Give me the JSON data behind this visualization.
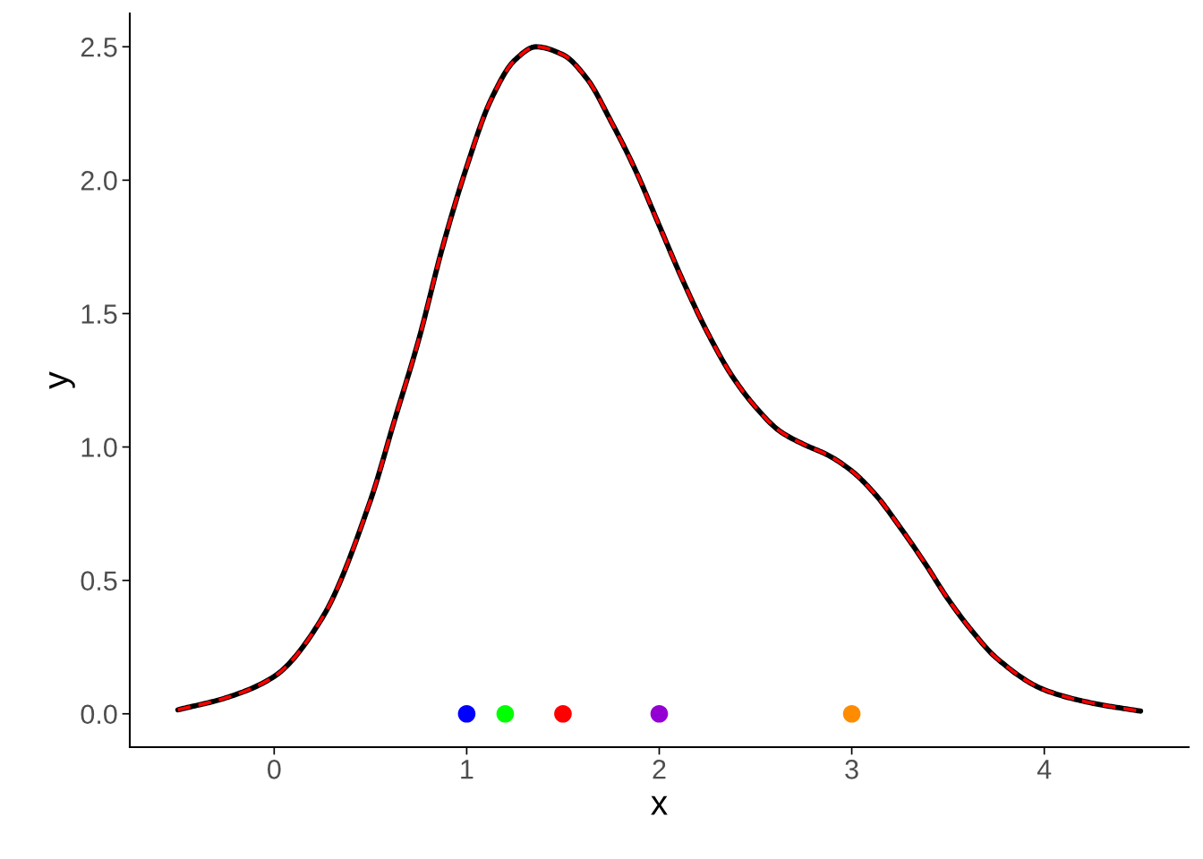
{
  "chart_data": {
    "type": "line",
    "xlabel": "x",
    "ylabel": "y",
    "xlim": [
      -0.75,
      4.75
    ],
    "ylim": [
      -0.125,
      2.625
    ],
    "xticks": [
      0,
      1,
      2,
      3,
      4
    ],
    "yticks": [
      {
        "value": 0,
        "label": "0.0"
      },
      {
        "value": 0.5,
        "label": "0.5"
      },
      {
        "value": 1,
        "label": "1.0"
      },
      {
        "value": 1.5,
        "label": "1.5"
      },
      {
        "value": 2,
        "label": "2.0"
      },
      {
        "value": 2.5,
        "label": "2.5"
      }
    ],
    "grid": false,
    "legend": false,
    "series": [
      {
        "color": "#000000",
        "line_style": "solid",
        "x": [
          -0.5,
          -0.25,
          0,
          0.25,
          0.5,
          0.625,
          0.75,
          0.875,
          1,
          1.125,
          1.25,
          1.36,
          1.5,
          1.625,
          1.75,
          1.875,
          2,
          2.125,
          2.25,
          2.375,
          2.5,
          2.625,
          2.75,
          2.875,
          3,
          3.125,
          3.25,
          3.375,
          3.5,
          3.625,
          3.75,
          4,
          4.25,
          4.5
        ],
        "values": [
          0.015,
          0.06,
          0.14,
          0.36,
          0.8,
          1.1,
          1.4,
          1.75,
          2.05,
          2.3,
          2.45,
          2.5,
          2.47,
          2.38,
          2.22,
          2.04,
          1.83,
          1.62,
          1.43,
          1.27,
          1.15,
          1.06,
          1.01,
          0.97,
          0.91,
          0.82,
          0.7,
          0.57,
          0.43,
          0.31,
          0.21,
          0.09,
          0.04,
          0.01
        ]
      },
      {
        "color": "#ff0000",
        "line_style": "dashed",
        "x": [
          -0.5,
          -0.25,
          0,
          0.25,
          0.5,
          0.625,
          0.75,
          0.875,
          1,
          1.125,
          1.25,
          1.36,
          1.5,
          1.625,
          1.75,
          1.875,
          2,
          2.125,
          2.25,
          2.375,
          2.5,
          2.625,
          2.75,
          2.875,
          3,
          3.125,
          3.25,
          3.375,
          3.5,
          3.625,
          3.75,
          4,
          4.25,
          4.5
        ],
        "values": [
          0.015,
          0.06,
          0.14,
          0.36,
          0.8,
          1.1,
          1.4,
          1.75,
          2.05,
          2.3,
          2.45,
          2.5,
          2.47,
          2.38,
          2.22,
          2.04,
          1.83,
          1.62,
          1.43,
          1.27,
          1.15,
          1.06,
          1.01,
          0.97,
          0.91,
          0.82,
          0.7,
          0.57,
          0.43,
          0.31,
          0.21,
          0.09,
          0.04,
          0.01
        ]
      },
      {
        "type": "scatter",
        "marker": "circle",
        "x": [
          1,
          1.2,
          1.5,
          2,
          3
        ],
        "values": [
          0,
          0,
          0,
          0,
          0
        ],
        "colors": [
          "#0000ff",
          "#00ff00",
          "#ff0000",
          "#9400d3",
          "#ff8c00"
        ]
      }
    ]
  }
}
